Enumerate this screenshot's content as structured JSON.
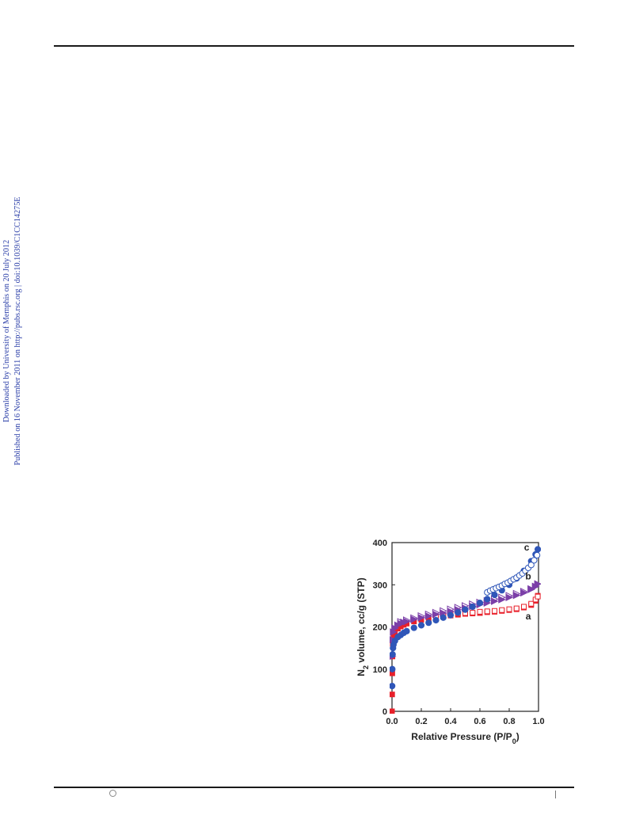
{
  "side_banner": {
    "line1": "Downloaded by University of Memphis on 20 July 2012",
    "line2": "Published on 16 November 2011 on http://pubs.rsc.org | doi:10.1039/C1CC14275E"
  },
  "colors": {
    "series_a": "#e8202a",
    "series_b": "#7b3fa8",
    "series_c": "#2f56b8",
    "banner": "#2b3fa8"
  },
  "chart_data": {
    "type": "scatter",
    "xlabel": "Relative Pressure (P/P0)",
    "ylabel": "N2 volume, cc/g (STP)",
    "xlim": [
      0.0,
      1.0
    ],
    "ylim": [
      0,
      400
    ],
    "x_ticks": [
      "0.0",
      "0.2",
      "0.4",
      "0.6",
      "0.8",
      "1.0"
    ],
    "y_ticks": [
      "0",
      "100",
      "200",
      "300",
      "400"
    ],
    "grid": false,
    "series": [
      {
        "name": "a",
        "color": "#e8202a",
        "adsorption": [
          [
            0.0,
            0
          ],
          [
            0.001,
            40
          ],
          [
            0.002,
            90
          ],
          [
            0.003,
            130
          ],
          [
            0.005,
            160
          ],
          [
            0.01,
            178
          ],
          [
            0.02,
            188
          ],
          [
            0.04,
            196
          ],
          [
            0.06,
            201
          ],
          [
            0.08,
            205
          ],
          [
            0.1,
            208
          ],
          [
            0.15,
            213
          ],
          [
            0.2,
            217
          ],
          [
            0.25,
            220
          ],
          [
            0.3,
            223
          ],
          [
            0.35,
            225
          ],
          [
            0.4,
            227
          ],
          [
            0.45,
            229
          ],
          [
            0.5,
            231
          ],
          [
            0.55,
            232
          ],
          [
            0.6,
            233
          ],
          [
            0.65,
            235
          ],
          [
            0.7,
            236
          ],
          [
            0.75,
            238
          ],
          [
            0.8,
            240
          ],
          [
            0.85,
            242
          ],
          [
            0.9,
            246
          ],
          [
            0.95,
            252
          ],
          [
            0.98,
            262
          ],
          [
            0.995,
            274
          ]
        ],
        "desorption": [
          [
            0.3,
            226
          ],
          [
            0.35,
            228
          ],
          [
            0.4,
            230
          ],
          [
            0.45,
            232
          ],
          [
            0.5,
            233
          ],
          [
            0.55,
            234
          ],
          [
            0.6,
            236
          ],
          [
            0.65,
            237
          ],
          [
            0.7,
            238
          ],
          [
            0.75,
            240
          ],
          [
            0.8,
            242
          ],
          [
            0.85,
            244
          ],
          [
            0.9,
            248
          ],
          [
            0.95,
            255
          ],
          [
            0.98,
            265
          ],
          [
            0.995,
            272
          ]
        ]
      },
      {
        "name": "b",
        "color": "#7b3fa8",
        "adsorption": [
          [
            0.002,
            130
          ],
          [
            0.005,
            170
          ],
          [
            0.01,
            188
          ],
          [
            0.02,
            197
          ],
          [
            0.04,
            204
          ],
          [
            0.06,
            208
          ],
          [
            0.08,
            211
          ],
          [
            0.1,
            213
          ],
          [
            0.15,
            218
          ],
          [
            0.2,
            222
          ],
          [
            0.25,
            226
          ],
          [
            0.3,
            230
          ],
          [
            0.35,
            233
          ],
          [
            0.4,
            237
          ],
          [
            0.45,
            241
          ],
          [
            0.5,
            245
          ],
          [
            0.55,
            249
          ],
          [
            0.6,
            253
          ],
          [
            0.65,
            257
          ],
          [
            0.7,
            261
          ],
          [
            0.75,
            265
          ],
          [
            0.8,
            270
          ],
          [
            0.85,
            275
          ],
          [
            0.9,
            281
          ],
          [
            0.95,
            289
          ],
          [
            0.98,
            296
          ],
          [
            0.995,
            302
          ]
        ],
        "desorption": [
          [
            0.06,
            212
          ],
          [
            0.1,
            216
          ],
          [
            0.15,
            221
          ],
          [
            0.2,
            226
          ],
          [
            0.25,
            230
          ],
          [
            0.3,
            234
          ],
          [
            0.35,
            238
          ],
          [
            0.4,
            242
          ],
          [
            0.45,
            246
          ],
          [
            0.5,
            250
          ],
          [
            0.55,
            254
          ],
          [
            0.6,
            258
          ],
          [
            0.65,
            262
          ],
          [
            0.7,
            266
          ],
          [
            0.75,
            270
          ],
          [
            0.8,
            274
          ],
          [
            0.85,
            279
          ],
          [
            0.9,
            284
          ],
          [
            0.95,
            290
          ],
          [
            0.98,
            296
          ]
        ]
      },
      {
        "name": "c",
        "color": "#2f56b8",
        "adsorption": [
          [
            0.001,
            60
          ],
          [
            0.002,
            100
          ],
          [
            0.004,
            135
          ],
          [
            0.007,
            150
          ],
          [
            0.01,
            158
          ],
          [
            0.02,
            167
          ],
          [
            0.04,
            176
          ],
          [
            0.06,
            181
          ],
          [
            0.08,
            186
          ],
          [
            0.1,
            190
          ],
          [
            0.15,
            198
          ],
          [
            0.2,
            204
          ],
          [
            0.25,
            210
          ],
          [
            0.3,
            216
          ],
          [
            0.35,
            222
          ],
          [
            0.4,
            228
          ],
          [
            0.45,
            234
          ],
          [
            0.5,
            241
          ],
          [
            0.55,
            248
          ],
          [
            0.6,
            257
          ],
          [
            0.65,
            266
          ],
          [
            0.7,
            276
          ],
          [
            0.75,
            287
          ],
          [
            0.8,
            300
          ],
          [
            0.85,
            315
          ],
          [
            0.9,
            333
          ],
          [
            0.95,
            356
          ],
          [
            0.98,
            372
          ],
          [
            0.995,
            384
          ]
        ],
        "desorption": [
          [
            0.65,
            282
          ],
          [
            0.67,
            286
          ],
          [
            0.69,
            289
          ],
          [
            0.71,
            292
          ],
          [
            0.73,
            295
          ],
          [
            0.75,
            298
          ],
          [
            0.77,
            302
          ],
          [
            0.79,
            305
          ],
          [
            0.81,
            309
          ],
          [
            0.83,
            313
          ],
          [
            0.85,
            317
          ],
          [
            0.87,
            322
          ],
          [
            0.89,
            327
          ],
          [
            0.91,
            333
          ],
          [
            0.93,
            340
          ],
          [
            0.95,
            347
          ],
          [
            0.97,
            358
          ],
          [
            0.99,
            370
          ]
        ]
      }
    ]
  }
}
